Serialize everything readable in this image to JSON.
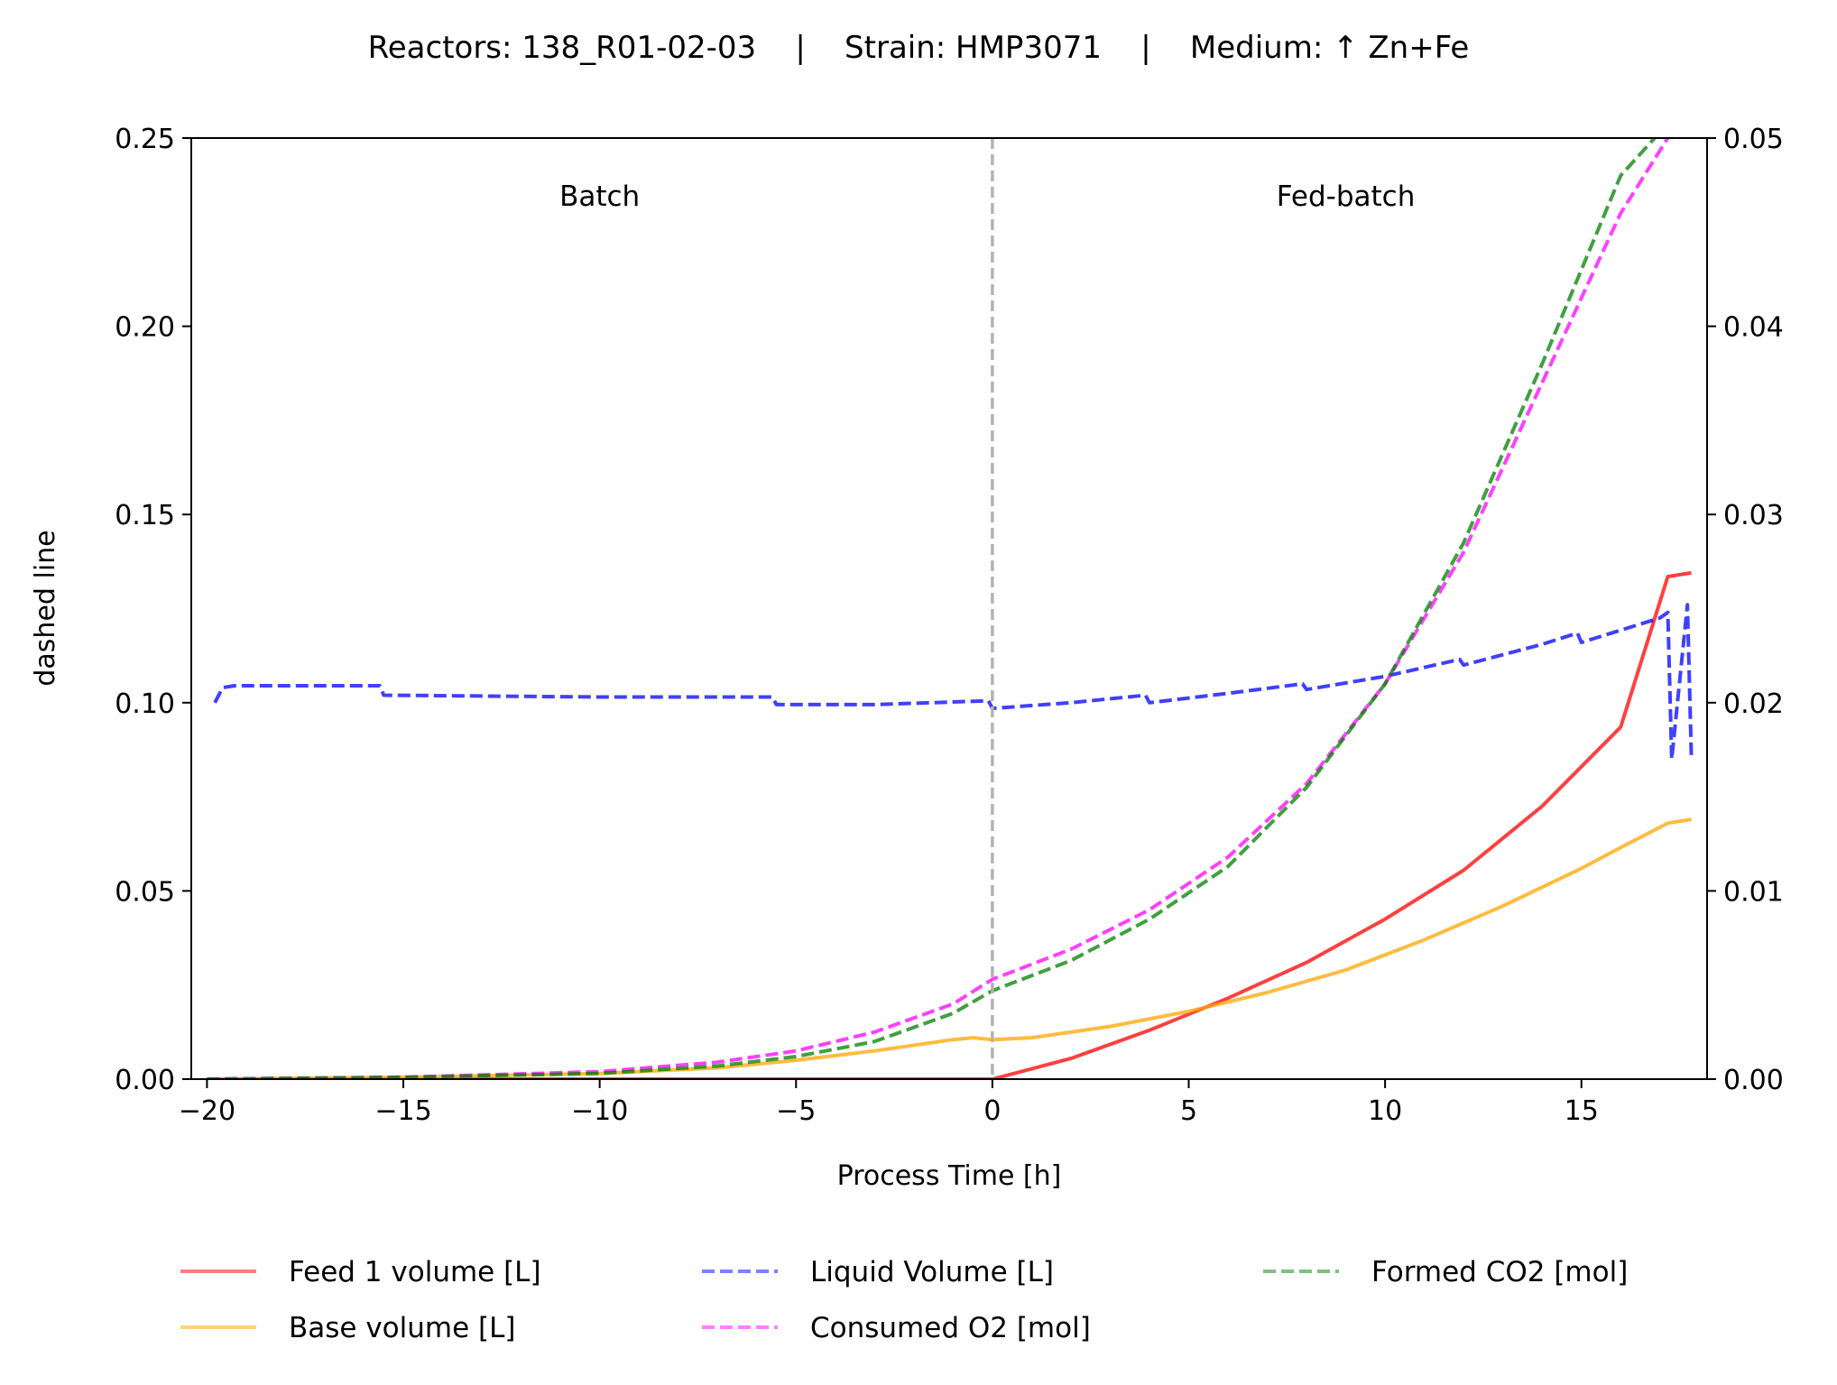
{
  "chart_data": {
    "type": "line",
    "title": "Reactors: 138_R01-02-03    |    Strain: HMP3071    |    Medium: ↑ Zn+Fe",
    "xlabel": "Process Time [h]",
    "ylabel": "dashed line",
    "xlim": [
      -20.4,
      18.2
    ],
    "ylim": [
      0,
      0.25
    ],
    "y2lim": [
      0,
      0.05
    ],
    "xticks": [
      -20,
      -15,
      -10,
      -5,
      0,
      5,
      10,
      15
    ],
    "xtick_labels": [
      "−20",
      "−15",
      "−10",
      "−5",
      "0",
      "5",
      "10",
      "15"
    ],
    "yticks": [
      0,
      0.05,
      0.1,
      0.15,
      0.2,
      0.25
    ],
    "ytick_labels": [
      "0.00",
      "0.05",
      "0.10",
      "0.15",
      "0.20",
      "0.25"
    ],
    "y2ticks": [
      0,
      0.01,
      0.02,
      0.03,
      0.04,
      0.05
    ],
    "y2tick_labels": [
      "0.00",
      "0.01",
      "0.02",
      "0.03",
      "0.04",
      "0.05"
    ],
    "grid": false,
    "legend_position": "bottom",
    "annotations": [
      {
        "text": "Batch",
        "x": -10,
        "y": 0.232
      },
      {
        "text": "Fed-batch",
        "x": 9,
        "y": 0.232
      }
    ],
    "vlines": [
      {
        "x": 0,
        "color": "#b3b3b3",
        "style": "dashed"
      }
    ],
    "series": [
      {
        "name": "Feed 1 volume [L]",
        "color": "#ff0000",
        "style": "solid",
        "axis": "left",
        "x": [
          -20,
          -5,
          0,
          2,
          4,
          6,
          8,
          10,
          12,
          14,
          16,
          17.2,
          17.8
        ],
        "y": [
          0,
          0,
          0,
          0.0055,
          0.013,
          0.0215,
          0.031,
          0.0425,
          0.0555,
          0.0725,
          0.0935,
          0.1335,
          0.1345
        ]
      },
      {
        "name": "Base volume [L]",
        "color": "#ffa500",
        "style": "solid",
        "axis": "left",
        "x": [
          -20,
          -15,
          -10,
          -7,
          -5,
          -3,
          -1,
          -0.5,
          0,
          1,
          3,
          5,
          7,
          9,
          11,
          13,
          15,
          16,
          17.2,
          17.8
        ],
        "y": [
          0,
          0.0005,
          0.0015,
          0.003,
          0.005,
          0.0075,
          0.0105,
          0.011,
          0.0105,
          0.011,
          0.014,
          0.018,
          0.023,
          0.029,
          0.037,
          0.046,
          0.056,
          0.0615,
          0.068,
          0.069
        ]
      },
      {
        "name": "Liquid Volume [L]",
        "color": "#0000ff",
        "style": "dashed",
        "axis": "left",
        "x": [
          -19.8,
          -19.6,
          -19.3,
          -17,
          -15.6,
          -15.5,
          -10,
          -5.6,
          -5.5,
          -3,
          -0.1,
          0,
          2,
          3.9,
          4,
          6,
          7.9,
          8,
          10,
          11.9,
          12,
          14,
          14.9,
          15,
          17,
          17.2,
          17.3,
          17.7,
          17.8
        ],
        "y": [
          0.1,
          0.104,
          0.1045,
          0.1045,
          0.1045,
          0.102,
          0.1015,
          0.1015,
          0.0995,
          0.0995,
          0.1005,
          0.0985,
          0.1,
          0.102,
          0.1,
          0.1025,
          0.105,
          0.1035,
          0.107,
          0.1115,
          0.11,
          0.1155,
          0.1185,
          0.116,
          0.1225,
          0.124,
          0.085,
          0.126,
          0.0855
        ]
      },
      {
        "name": "Consumed O2 [mol]",
        "color": "#ff00ff",
        "style": "dashed",
        "axis": "right",
        "x": [
          -20,
          -15,
          -10,
          -7,
          -5,
          -3,
          -1,
          0,
          2,
          4,
          6,
          8,
          10,
          12,
          14,
          16,
          17.5
        ],
        "y": [
          0,
          0.0001,
          0.0004,
          0.0009,
          0.0015,
          0.0025,
          0.004,
          0.0053,
          0.0069,
          0.009,
          0.0118,
          0.0157,
          0.021,
          0.028,
          0.037,
          0.046,
          0.051
        ]
      },
      {
        "name": "Formed CO2 [mol]",
        "color": "#008000",
        "style": "dashed",
        "axis": "right",
        "x": [
          -20,
          -15,
          -10,
          -7,
          -5,
          -3,
          -1,
          0,
          2,
          4,
          6,
          8,
          10,
          12,
          14,
          16,
          17.3
        ],
        "y": [
          0,
          0.0001,
          0.0003,
          0.0007,
          0.0012,
          0.002,
          0.0035,
          0.0047,
          0.0063,
          0.0085,
          0.0113,
          0.0155,
          0.021,
          0.0285,
          0.038,
          0.048,
          0.051
        ]
      }
    ],
    "legend": [
      {
        "label": "Feed 1 volume [L]",
        "color": "#ff0000",
        "style": "solid",
        "alpha": 0.5
      },
      {
        "label": "Base volume [L]",
        "color": "#ffa500",
        "style": "solid",
        "alpha": 0.5
      },
      {
        "label": "Liquid Volume [L]",
        "color": "#0000ff",
        "style": "dashed",
        "alpha": 0.5
      },
      {
        "label": "Consumed O2 [mol]",
        "color": "#ff00ff",
        "style": "dashed",
        "alpha": 0.5
      },
      {
        "label": "Formed CO2 [mol]",
        "color": "#008000",
        "style": "dashed",
        "alpha": 0.5
      }
    ]
  }
}
